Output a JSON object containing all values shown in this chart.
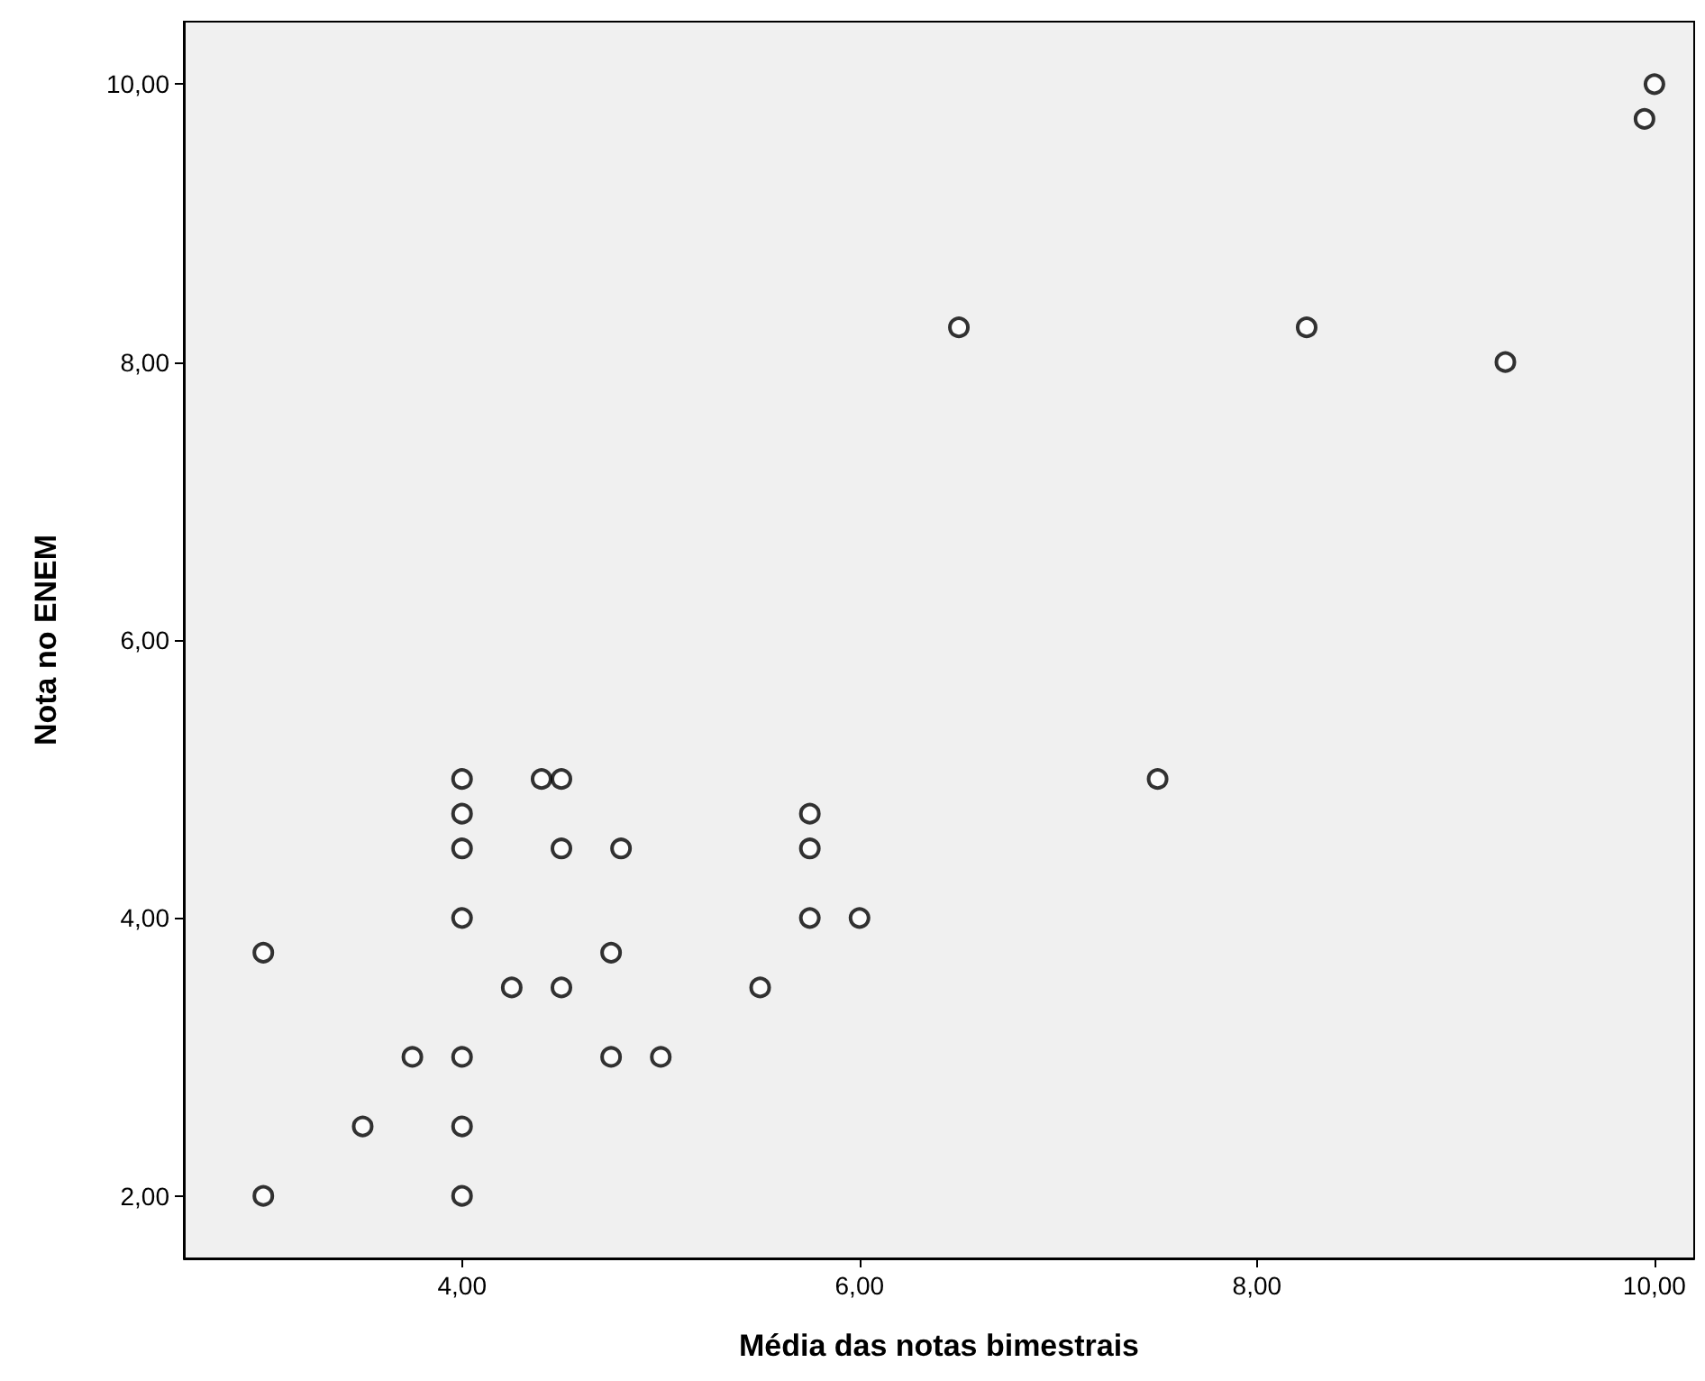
{
  "chart_data": {
    "type": "scatter",
    "xlabel": "Média das notas bimestrais",
    "ylabel": "Nota no ENEM",
    "x": [
      3,
      3,
      3.5,
      3.75,
      4,
      4,
      4,
      4,
      4,
      4,
      4,
      4.25,
      4.4,
      4.5,
      4.5,
      4.5,
      4.8,
      4.75,
      4.75,
      5,
      5.5,
      5.75,
      5.75,
      5.75,
      6,
      6.5,
      7.5,
      8.25,
      9.25,
      9.95,
      10
    ],
    "values": [
      3.75,
      2,
      2.5,
      3,
      5,
      4.75,
      4.5,
      4,
      3,
      2.5,
      2,
      3.5,
      5,
      5,
      4.5,
      3.5,
      4.5,
      3.75,
      3,
      3,
      3.5,
      4.75,
      4.5,
      4,
      4,
      8.25,
      5,
      8.25,
      8,
      9.75,
      10
    ],
    "color": "#000000",
    "marker": "circle",
    "grid": false,
    "xlim": [
      2.6,
      10.2
    ],
    "ylim": [
      1.55,
      10.45
    ],
    "xticks": [
      {
        "value": 4,
        "label": "4,00"
      },
      {
        "value": 6,
        "label": "6,00"
      },
      {
        "value": 8,
        "label": "8,00"
      },
      {
        "value": 10,
        "label": "10,00"
      }
    ],
    "yticks": [
      {
        "value": 2,
        "label": "2,00"
      },
      {
        "value": 4,
        "label": "4,00"
      },
      {
        "value": 6,
        "label": "6,00"
      },
      {
        "value": 8,
        "label": "8,00"
      },
      {
        "value": 10,
        "label": "10,00"
      }
    ]
  }
}
